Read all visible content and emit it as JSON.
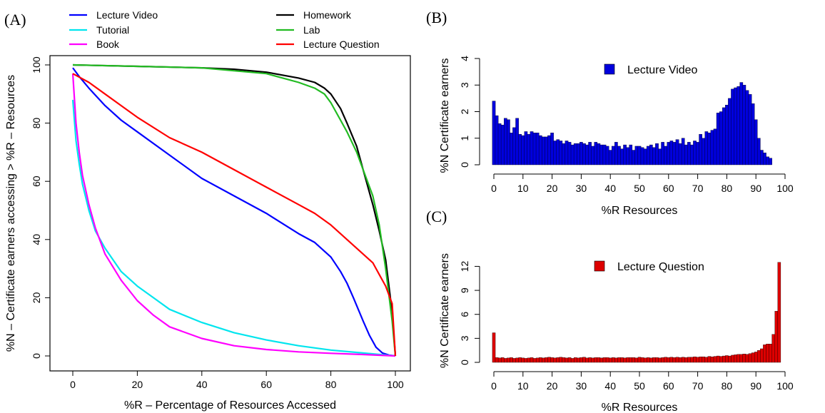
{
  "panels": {
    "a": "(A)",
    "b": "(B)",
    "c": "(C)"
  },
  "chart_data": [
    {
      "type": "line",
      "xlabel": "%R – Percentage of Resources Accessed",
      "ylabel": "%N – Certificate earners accessing > %R – Resources",
      "xlim": [
        0,
        100
      ],
      "ylim": [
        0,
        100
      ],
      "xticks": [
        0,
        20,
        40,
        60,
        80,
        100
      ],
      "yticks": [
        0,
        20,
        40,
        60,
        80,
        100
      ],
      "legend_placement": "top, above plot, two columns",
      "series": [
        {
          "name": "Lecture Video",
          "color": "#0000ff",
          "x": [
            0,
            2,
            5,
            10,
            15,
            20,
            30,
            40,
            50,
            60,
            70,
            75,
            80,
            83,
            85,
            87,
            90,
            92,
            94,
            96,
            98,
            100
          ],
          "y": [
            99,
            96,
            92,
            86,
            81,
            77,
            69,
            61,
            55,
            49,
            42,
            39,
            34,
            29,
            25,
            20,
            12,
            7,
            3,
            1,
            0.3,
            0
          ]
        },
        {
          "name": "Tutorial",
          "color": "#00e5ee",
          "x": [
            0,
            1,
            2,
            3,
            5,
            7,
            10,
            15,
            20,
            25,
            30,
            40,
            50,
            60,
            70,
            80,
            90,
            100
          ],
          "y": [
            88,
            74,
            66,
            59,
            50,
            43,
            37,
            29,
            24,
            20,
            16,
            11.5,
            8,
            5.5,
            3.5,
            2,
            1,
            0
          ]
        },
        {
          "name": "Book",
          "color": "#ff00ff",
          "x": [
            0,
            1,
            2,
            3,
            5,
            7,
            10,
            15,
            20,
            25,
            30,
            40,
            50,
            60,
            70,
            80,
            90,
            100
          ],
          "y": [
            97,
            80,
            70,
            62,
            52,
            44,
            35,
            26,
            19,
            14,
            10,
            6,
            3.5,
            2.2,
            1.4,
            0.9,
            0.5,
            0
          ]
        },
        {
          "name": "Homework",
          "color": "#000000",
          "x": [
            0,
            20,
            40,
            50,
            60,
            70,
            75,
            78,
            80,
            83,
            85,
            88,
            90,
            93,
            95,
            97,
            99,
            100
          ],
          "y": [
            100,
            99.5,
            99,
            98.5,
            97.5,
            95.5,
            94,
            92,
            90,
            85,
            80,
            72,
            64,
            52,
            43,
            33,
            15,
            0
          ]
        },
        {
          "name": "Lab",
          "color": "#22bb22",
          "x": [
            0,
            20,
            40,
            50,
            60,
            70,
            75,
            78,
            80,
            83,
            85,
            88,
            90,
            93,
            95,
            97,
            99,
            100
          ],
          "y": [
            100,
            99.5,
            99,
            98,
            97,
            94,
            92,
            90,
            87,
            81,
            77,
            70,
            64,
            55,
            45,
            30,
            12,
            0
          ]
        },
        {
          "name": "Lecture Question",
          "color": "#ff0000",
          "x": [
            0,
            5,
            10,
            15,
            20,
            30,
            40,
            50,
            60,
            70,
            75,
            80,
            85,
            90,
            93,
            95,
            97,
            99,
            100
          ],
          "y": [
            97,
            94,
            90,
            86,
            82,
            75,
            70,
            64,
            58,
            52,
            49,
            45,
            40,
            35,
            32,
            28,
            24,
            18,
            0
          ]
        }
      ]
    },
    {
      "type": "bar",
      "xlabel": "%R Resources",
      "ylabel": "%N Certificate earners",
      "xlim": [
        0,
        100
      ],
      "ylim": [
        0,
        4
      ],
      "xticks": [
        0,
        10,
        20,
        30,
        40,
        50,
        60,
        70,
        80,
        90,
        100
      ],
      "yticks": [
        0,
        1,
        2,
        3,
        4
      ],
      "legend_placement": "top-center",
      "series": [
        {
          "name": "Lecture Video",
          "color": "#0000dd",
          "values": [
            2.4,
            1.85,
            1.55,
            1.5,
            1.75,
            1.7,
            1.2,
            1.4,
            1.75,
            1.15,
            1.1,
            1.25,
            1.15,
            1.25,
            1.2,
            1.2,
            1.1,
            1.05,
            1.05,
            1.1,
            1.2,
            0.9,
            0.95,
            0.9,
            0.8,
            0.9,
            0.85,
            0.75,
            0.8,
            0.8,
            0.85,
            0.8,
            0.75,
            0.85,
            0.7,
            0.85,
            0.8,
            0.75,
            0.75,
            0.7,
            0.55,
            0.7,
            0.85,
            0.7,
            0.6,
            0.75,
            0.65,
            0.75,
            0.55,
            0.7,
            0.7,
            0.65,
            0.6,
            0.7,
            0.75,
            0.65,
            0.8,
            0.6,
            0.85,
            0.7,
            0.85,
            0.9,
            0.85,
            0.95,
            0.8,
            1.0,
            0.75,
            0.85,
            0.75,
            0.9,
            0.85,
            1.15,
            1.0,
            1.25,
            1.2,
            1.3,
            1.35,
            1.95,
            2.0,
            2.15,
            2.25,
            2.5,
            2.85,
            2.9,
            2.95,
            3.1,
            3.0,
            2.8,
            2.65,
            2.3,
            1.7,
            1.0,
            0.55,
            0.45,
            0.3,
            0.25
          ]
        }
      ]
    },
    {
      "type": "bar",
      "xlabel": "%R Resources",
      "ylabel": "%N Certificate earners",
      "xlim": [
        0,
        100
      ],
      "ylim": [
        0,
        14
      ],
      "xticks": [
        0,
        10,
        20,
        30,
        40,
        50,
        60,
        70,
        80,
        90,
        100
      ],
      "yticks": [
        0,
        3,
        6,
        9,
        12
      ],
      "legend_placement": "top-center",
      "series": [
        {
          "name": "Lecture Question",
          "color": "#dd0000",
          "values": [
            3.7,
            0.6,
            0.55,
            0.6,
            0.5,
            0.55,
            0.6,
            0.5,
            0.55,
            0.6,
            0.55,
            0.5,
            0.55,
            0.6,
            0.5,
            0.55,
            0.6,
            0.55,
            0.6,
            0.65,
            0.6,
            0.55,
            0.6,
            0.65,
            0.6,
            0.55,
            0.6,
            0.5,
            0.6,
            0.55,
            0.6,
            0.65,
            0.55,
            0.6,
            0.55,
            0.6,
            0.6,
            0.55,
            0.6,
            0.6,
            0.55,
            0.6,
            0.55,
            0.6,
            0.6,
            0.55,
            0.6,
            0.6,
            0.6,
            0.55,
            0.65,
            0.6,
            0.55,
            0.6,
            0.55,
            0.6,
            0.6,
            0.55,
            0.6,
            0.65,
            0.6,
            0.65,
            0.6,
            0.65,
            0.6,
            0.65,
            0.6,
            0.65,
            0.65,
            0.7,
            0.65,
            0.7,
            0.7,
            0.65,
            0.75,
            0.7,
            0.75,
            0.8,
            0.75,
            0.8,
            0.85,
            0.8,
            0.9,
            0.95,
            1.0,
            1.0,
            1.05,
            1.0,
            1.1,
            1.2,
            1.3,
            1.5,
            1.7,
            2.2,
            2.3,
            2.3,
            3.5,
            6.4,
            12.5
          ]
        }
      ]
    }
  ]
}
